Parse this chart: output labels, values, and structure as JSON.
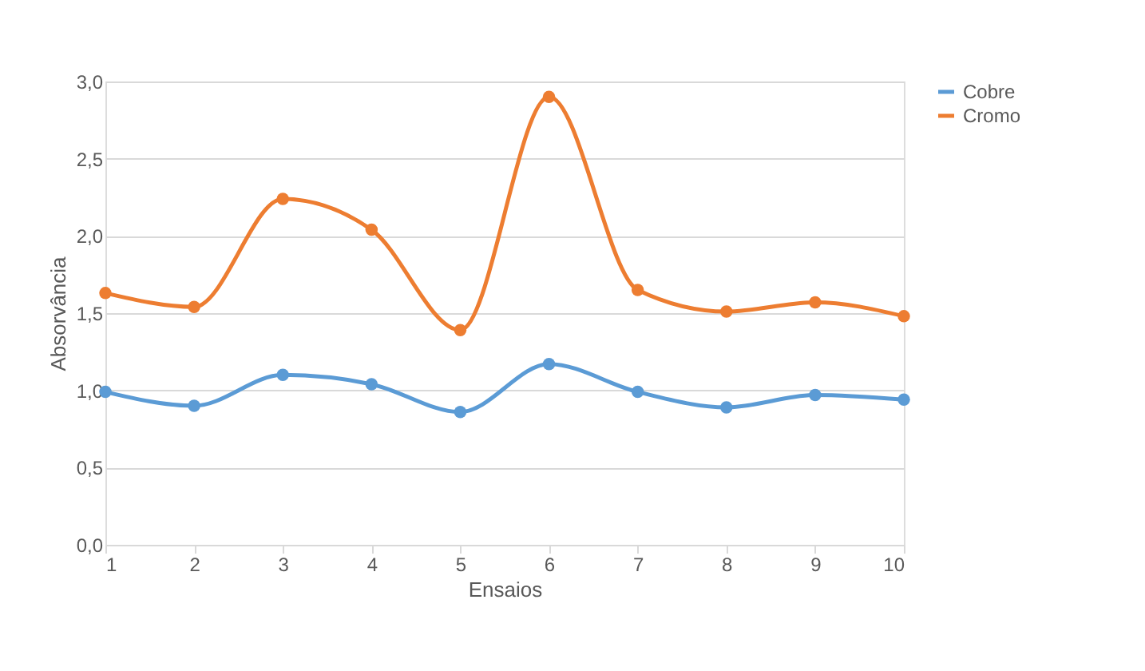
{
  "chart_data": {
    "type": "line",
    "xlabel": "Ensaios",
    "ylabel": "Absorvância",
    "x": [
      1,
      2,
      3,
      4,
      5,
      6,
      7,
      8,
      9,
      10
    ],
    "series": [
      {
        "name": "Cobre",
        "color": "#5b9bd5",
        "values": [
          0.99,
          0.9,
          1.1,
          1.04,
          0.86,
          1.17,
          0.99,
          0.89,
          0.97,
          0.94
        ]
      },
      {
        "name": "Cromo",
        "color": "#ed7d31",
        "values": [
          1.63,
          1.54,
          2.24,
          2.04,
          1.39,
          2.9,
          1.65,
          1.51,
          1.57,
          1.48
        ]
      }
    ],
    "xlim": [
      1,
      10
    ],
    "xticks": [
      1,
      2,
      3,
      4,
      5,
      6,
      7,
      8,
      9,
      10
    ],
    "ylim": [
      0,
      3.0
    ],
    "yticks": [
      {
        "value": 0,
        "label": "0,0"
      },
      {
        "value": 0.5,
        "label": "0,5"
      },
      {
        "value": 1.0,
        "label": "1,0"
      },
      {
        "value": 1.5,
        "label": "1,5"
      },
      {
        "value": 2.0,
        "label": "2,0"
      },
      {
        "value": 2.5,
        "label": "2,5"
      },
      {
        "value": 3.0,
        "label": "3,0"
      }
    ],
    "grid": "y",
    "legend": "right",
    "marker": "circle",
    "line_style": "solid"
  }
}
